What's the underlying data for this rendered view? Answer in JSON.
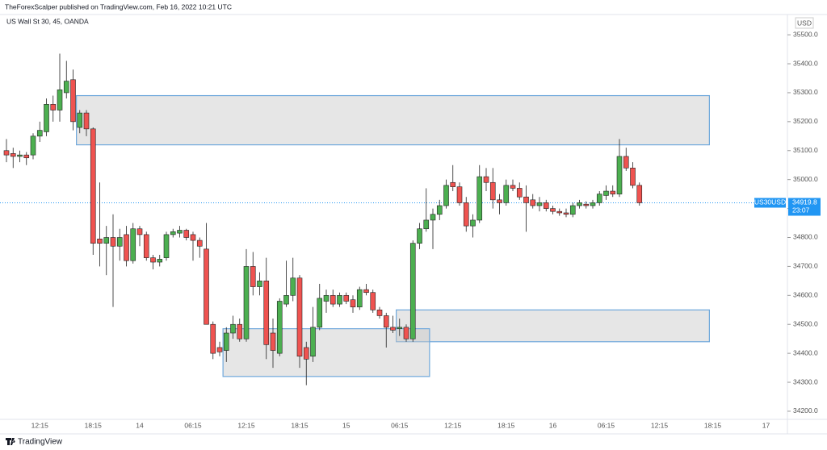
{
  "header": {
    "published": "TheForexScalper published on TradingView.com, Feb 16, 2022 10:21 UTC",
    "footer_logo": "TradingView"
  },
  "chart_data": {
    "type": "candlestick",
    "title": "US Wall St 30, 45, OANDA",
    "currency": "USD",
    "symbol_label": "US30USD",
    "last_price": 34919.8,
    "countdown": "23:07",
    "up_color": "#4caf50",
    "down_color": "#ef5350",
    "zone_color": "#6fa8dc",
    "last_price_color": "#2196f3",
    "categories": [
      null,
      null,
      null,
      null,
      null,
      "12:15",
      null,
      null,
      null,
      null,
      null,
      null,
      null,
      "18:15",
      null,
      null,
      null,
      null,
      null,
      null,
      "14",
      null,
      null,
      null,
      null,
      null,
      null,
      null,
      "06:15",
      null,
      null,
      null,
      null,
      null,
      null,
      null,
      "12:15",
      null,
      null,
      null,
      null,
      null,
      null,
      null,
      "18:15",
      null,
      null,
      null,
      null,
      null,
      null,
      "15",
      null,
      null,
      null,
      null,
      null,
      null,
      null,
      "06:15",
      null,
      null,
      null,
      null,
      null,
      null,
      null,
      "12:15",
      null,
      null,
      null,
      null,
      null,
      null,
      null,
      "18:15",
      null,
      null,
      null,
      null,
      null,
      null,
      "16",
      null,
      null,
      null,
      null,
      null,
      null,
      null,
      "06:15",
      null,
      null,
      null,
      null,
      null,
      null,
      null,
      "12:15",
      null,
      null,
      null,
      null,
      null,
      null,
      null,
      "18:15",
      null,
      null,
      null,
      null,
      null,
      null,
      null,
      "17",
      null,
      null
    ],
    "open": [
      35100,
      35090,
      35080,
      35085,
      35085,
      35150,
      35165,
      35260,
      35240,
      35300,
      35345,
      35180,
      35230,
      35175,
      34795,
      34780,
      34800,
      34770,
      34810,
      34720,
      34830,
      34810,
      34730,
      34715,
      34730,
      34810,
      34815,
      34825,
      34810,
      34790,
      34760,
      34500,
      34420,
      34410,
      34470,
      34500,
      34450,
      34700,
      34630,
      34650,
      34470,
      34400,
      34570,
      34600,
      34660,
      34420,
      34390,
      34490,
      34580,
      34600,
      34570,
      34600,
      34585,
      34560,
      34620,
      34610,
      34550,
      34530,
      34490,
      34485,
      34490,
      34450,
      34780,
      34830,
      34860,
      34880,
      34910,
      34990,
      34975,
      34920,
      34840,
      34860,
      35010,
      34990,
      34930,
      34920,
      34980,
      34970,
      34940,
      34930,
      34910,
      34920,
      34900,
      34890,
      34885,
      34880,
      34910,
      34915,
      34910,
      34920,
      34945,
      34960,
      34950,
      35080,
      35040,
      34980,
      null,
      null,
      null,
      null,
      null,
      null,
      null,
      null,
      null,
      null,
      null,
      null,
      null,
      null,
      null,
      null,
      null,
      null,
      null,
      null,
      null
    ],
    "high": [
      35140,
      35110,
      35100,
      35095,
      35160,
      35200,
      35280,
      35290,
      35435,
      35410,
      35380,
      35240,
      35240,
      35180,
      34990,
      34840,
      34880,
      34830,
      34840,
      34850,
      34840,
      34820,
      34740,
      34740,
      34820,
      34830,
      34840,
      34830,
      34820,
      34800,
      34850,
      34510,
      34440,
      34490,
      34530,
      34520,
      34760,
      34750,
      34680,
      34730,
      34520,
      34590,
      34720,
      34730,
      34670,
      34440,
      34560,
      34640,
      34620,
      34620,
      34610,
      34610,
      34600,
      34630,
      34640,
      34620,
      34560,
      34540,
      34530,
      34520,
      34500,
      34790,
      34850,
      34970,
      34900,
      34930,
      35000,
      35050,
      34990,
      34940,
      34880,
      35050,
      35040,
      35040,
      34950,
      35000,
      35000,
      34990,
      34980,
      34950,
      34940,
      34930,
      34910,
      34900,
      34900,
      34920,
      34930,
      34925,
      34930,
      34960,
      34980,
      34980,
      35140,
      35110,
      35060,
      34990,
      null,
      null,
      null,
      null,
      null,
      null,
      null,
      null,
      null,
      null,
      null,
      null,
      null,
      null,
      null,
      null,
      null,
      null,
      null,
      null,
      null
    ],
    "low": [
      35060,
      35040,
      35060,
      35050,
      35070,
      35130,
      35150,
      35200,
      35200,
      35280,
      35170,
      35160,
      35150,
      34740,
      34700,
      34670,
      34560,
      34720,
      34700,
      34710,
      34770,
      34720,
      34690,
      34700,
      34720,
      34800,
      34800,
      34790,
      34720,
      34730,
      34500,
      34380,
      34390,
      34370,
      34450,
      34440,
      34440,
      34600,
      34600,
      34380,
      34350,
      34390,
      34560,
      34580,
      34350,
      34290,
      34370,
      34480,
      34540,
      34560,
      34560,
      34570,
      34540,
      34550,
      34600,
      34540,
      34520,
      34420,
      34470,
      34460,
      34440,
      34440,
      34760,
      34820,
      34760,
      34860,
      34900,
      34960,
      34910,
      34820,
      34800,
      34850,
      34960,
      34900,
      34880,
      34910,
      34960,
      34930,
      34820,
      34900,
      34890,
      34890,
      34880,
      34875,
      34870,
      34870,
      34900,
      34900,
      34900,
      34910,
      34930,
      34940,
      34940,
      35030,
      34970,
      34910,
      null,
      null,
      null,
      null,
      null,
      null,
      null,
      null,
      null,
      null,
      null,
      null,
      null,
      null,
      null,
      null,
      null,
      null,
      null,
      null,
      null
    ],
    "close": [
      35085,
      35080,
      35085,
      35075,
      35150,
      35170,
      35260,
      35240,
      35310,
      35340,
      35200,
      35230,
      35175,
      34780,
      34780,
      34800,
      34770,
      34800,
      34720,
      34830,
      34810,
      34730,
      34715,
      34725,
      34810,
      34820,
      34825,
      34800,
      34790,
      34770,
      34500,
      34400,
      34405,
      34470,
      34500,
      34450,
      34700,
      34630,
      34650,
      34430,
      34410,
      34580,
      34600,
      34660,
      34390,
      34380,
      34490,
      34590,
      34600,
      34570,
      34600,
      34580,
      34560,
      34620,
      34610,
      34550,
      34530,
      34490,
      34480,
      34490,
      34450,
      34780,
      34830,
      34860,
      34880,
      34910,
      34980,
      34975,
      34920,
      34840,
      34860,
      35010,
      34990,
      34930,
      34920,
      34980,
      34970,
      34940,
      34920,
      34910,
      34920,
      34900,
      34890,
      34885,
      34880,
      34910,
      34920,
      34910,
      34920,
      34950,
      34960,
      34950,
      35080,
      35040,
      34980,
      34920,
      null,
      null,
      null,
      null,
      null,
      null,
      null,
      null,
      null,
      null,
      null,
      null,
      null,
      null,
      null,
      null,
      null,
      null,
      null,
      null,
      null
    ],
    "zones": [
      {
        "range": [
          35120,
          35290
        ],
        "span": [
          11,
          105
        ]
      },
      {
        "range": [
          34440,
          34550
        ],
        "span": [
          59,
          105
        ]
      },
      {
        "range": [
          34320,
          34485
        ],
        "span": [
          33,
          63
        ]
      }
    ],
    "ylim": [
      34172,
      35570
    ],
    "yticks": [
      {
        "value": 34200,
        "label": "34200.0"
      },
      {
        "value": 34300,
        "label": "34300.0"
      },
      {
        "value": 34400,
        "label": "34400.0"
      },
      {
        "value": 34500,
        "label": "34500.0"
      },
      {
        "value": 34600,
        "label": "34600.0"
      },
      {
        "value": 34700,
        "label": "34700.0"
      },
      {
        "value": 34800,
        "label": "34800.0"
      },
      {
        "value": 34900,
        "label": "34900.0"
      },
      {
        "value": 35000,
        "label": "35000.0"
      },
      {
        "value": 35100,
        "label": "35100.0"
      },
      {
        "value": 35200,
        "label": "35200.0"
      },
      {
        "value": 35300,
        "label": "35300.0"
      },
      {
        "value": 35400,
        "label": "35400.0"
      },
      {
        "value": 35500,
        "label": "35500.0"
      }
    ]
  }
}
